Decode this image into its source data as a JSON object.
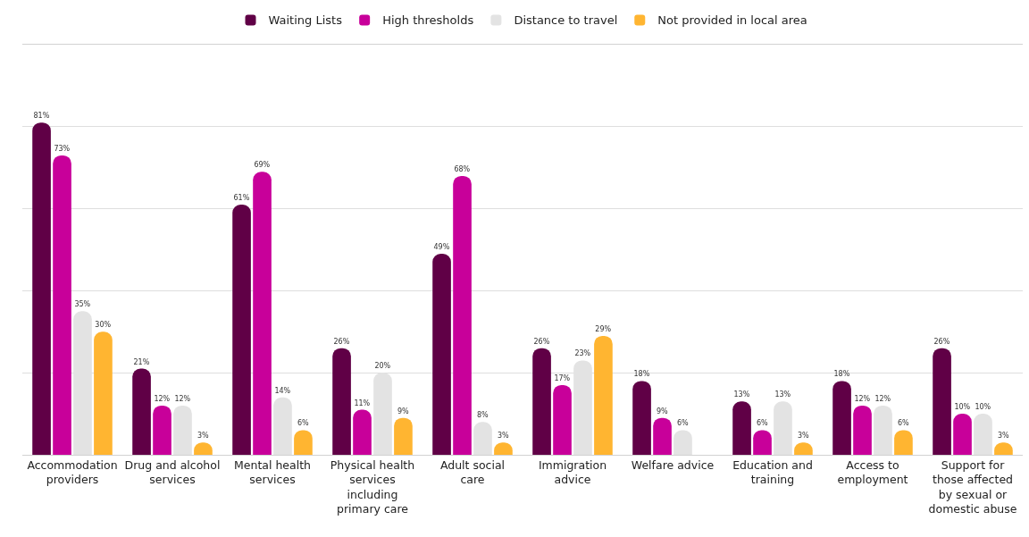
{
  "chart_data": {
    "type": "bar",
    "categories": [
      "Accommodation providers",
      "Drug and alcohol services",
      "Mental health services",
      "Physical health services including primary care",
      "Adult social care",
      "Immigration advice",
      "Welfare advice",
      "Education and training",
      "Access to employment",
      "Support for those affected by sexual or domestic abuse"
    ],
    "series": [
      {
        "name": "Waiting Lists",
        "color": "#600046",
        "values": [
          81,
          21,
          61,
          26,
          49,
          26,
          18,
          13,
          18,
          26
        ],
        "value_labels": [
          "81%",
          "21%",
          "61%",
          "26%",
          "49%",
          "26%",
          "18%",
          "13%",
          "18%",
          "26%"
        ]
      },
      {
        "name": "High thresholds",
        "color": "#c8009a",
        "values": [
          73,
          12,
          69,
          11,
          68,
          17,
          9,
          6,
          12,
          10
        ],
        "value_labels": [
          "73%",
          "12%",
          "69%",
          "11%",
          "68%",
          "17%",
          "9%",
          "6%",
          "12%",
          "10%"
        ]
      },
      {
        "name": "Distance to travel",
        "color": "#e3e3e3",
        "values": [
          35,
          12,
          14,
          20,
          8,
          23,
          6,
          13,
          12,
          10
        ],
        "value_labels": [
          "35%",
          "12%",
          "14%",
          "20%",
          "8%",
          "23%",
          "6%",
          "13%",
          "12%",
          "10%"
        ]
      },
      {
        "name": "Not provided in local area",
        "color": "#ffb531",
        "values": [
          30,
          3,
          6,
          9,
          3,
          29,
          null,
          3,
          6,
          3
        ],
        "value_labels": [
          "30%",
          "3%",
          "6%",
          "9%",
          "3%",
          "29%",
          null,
          "3%",
          "6%",
          "3%"
        ]
      }
    ],
    "ylim": [
      0,
      100
    ],
    "yticks": [
      {
        "value": 0,
        "label": null
      },
      {
        "value": 20,
        "label": null
      },
      {
        "value": 40,
        "label": null
      },
      {
        "value": 60,
        "label": null
      },
      {
        "value": 80,
        "label": null
      },
      {
        "value": 100,
        "label": null
      }
    ],
    "tick_labels": "x",
    "grid": "y",
    "legend": "top"
  }
}
